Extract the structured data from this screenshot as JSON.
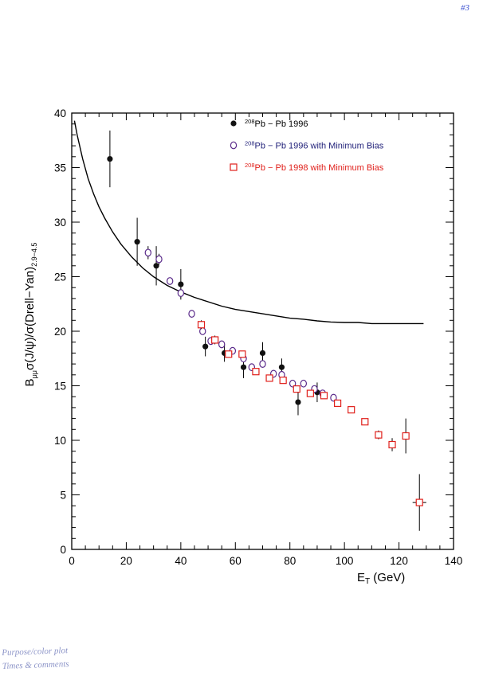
{
  "page_number": "#3",
  "handwritten_note": [
    "Purpose/color plot",
    "Times & comments"
  ],
  "chart_data": {
    "type": "scatter",
    "title": "",
    "xlabel": "E_T (GeV)",
    "ylabel": "B_{μμ}σ(J/ψ)/σ(Drell−Yan)_{2.9−4.5}",
    "xlim": [
      0,
      140
    ],
    "ylim": [
      0,
      40
    ],
    "x_ticks": [
      0,
      20,
      40,
      60,
      80,
      100,
      120,
      140
    ],
    "y_ticks": [
      0,
      5,
      10,
      15,
      20,
      25,
      30,
      35,
      40
    ],
    "grid": false,
    "legend_position": "top-center",
    "series": [
      {
        "name": "208Pb − Pb 1996",
        "marker": "filled-circle",
        "color": "#111111",
        "points": [
          {
            "x": 14,
            "y": 35.8,
            "err": 2.6
          },
          {
            "x": 24,
            "y": 28.2,
            "err": 2.2
          },
          {
            "x": 31,
            "y": 26.0,
            "err": 1.8
          },
          {
            "x": 40,
            "y": 24.3,
            "err": 1.4
          },
          {
            "x": 49,
            "y": 18.6,
            "err": 0.9
          },
          {
            "x": 56,
            "y": 18.0,
            "err": 0.8
          },
          {
            "x": 63,
            "y": 16.7,
            "err": 1.0
          },
          {
            "x": 70,
            "y": 18.0,
            "err": 1.0
          },
          {
            "x": 77,
            "y": 16.7,
            "err": 0.8
          },
          {
            "x": 83,
            "y": 13.5,
            "err": 1.2
          },
          {
            "x": 90,
            "y": 14.4,
            "err": 0.9
          }
        ]
      },
      {
        "name": "208Pb − Pb 1996 with Minimum Bias",
        "marker": "open-circle",
        "color": "#5a2a8a",
        "points": [
          {
            "x": 28,
            "y": 27.2,
            "err": 0.6
          },
          {
            "x": 32,
            "y": 26.6,
            "err": 0.5
          },
          {
            "x": 36,
            "y": 24.6,
            "err": 0.3
          },
          {
            "x": 40,
            "y": 23.5,
            "err": 0.4
          },
          {
            "x": 44,
            "y": 21.6,
            "err": 0.3
          },
          {
            "x": 48,
            "y": 20.0,
            "err": 0.3
          },
          {
            "x": 51,
            "y": 19.1,
            "err": 0.3
          },
          {
            "x": 55,
            "y": 18.8,
            "err": 0.3
          },
          {
            "x": 59,
            "y": 18.2,
            "err": 0.3
          },
          {
            "x": 63,
            "y": 17.5,
            "err": 0.3
          },
          {
            "x": 66,
            "y": 16.7,
            "err": 0.3
          },
          {
            "x": 70,
            "y": 17.0,
            "err": 0.3
          },
          {
            "x": 74,
            "y": 16.1,
            "err": 0.3
          },
          {
            "x": 77,
            "y": 16.0,
            "err": 0.3
          },
          {
            "x": 81,
            "y": 15.2,
            "err": 0.3
          },
          {
            "x": 85,
            "y": 15.2,
            "err": 0.3
          },
          {
            "x": 89,
            "y": 14.7,
            "err": 0.3
          },
          {
            "x": 92,
            "y": 14.3,
            "err": 0.3
          },
          {
            "x": 96,
            "y": 13.9,
            "err": 0.3
          }
        ]
      },
      {
        "name": "208Pb − Pb 1998 with Minimum Bias",
        "marker": "open-square",
        "color": "#e0201b",
        "points": [
          {
            "x": 47.5,
            "y": 20.6,
            "err": 0.4
          },
          {
            "x": 52.5,
            "y": 19.2,
            "err": 0.4
          },
          {
            "x": 57.5,
            "y": 17.9,
            "err": 0.3
          },
          {
            "x": 62.5,
            "y": 17.9,
            "err": 0.3
          },
          {
            "x": 67.5,
            "y": 16.3,
            "err": 0.3
          },
          {
            "x": 72.5,
            "y": 15.7,
            "err": 0.3
          },
          {
            "x": 77.5,
            "y": 15.5,
            "err": 0.3
          },
          {
            "x": 82.5,
            "y": 14.7,
            "err": 0.3
          },
          {
            "x": 87.5,
            "y": 14.3,
            "err": 0.3
          },
          {
            "x": 92.5,
            "y": 14.1,
            "err": 0.3
          },
          {
            "x": 97.5,
            "y": 13.4,
            "err": 0.3
          },
          {
            "x": 102.5,
            "y": 12.8,
            "err": 0.3
          },
          {
            "x": 107.5,
            "y": 11.7,
            "err": 0.3
          },
          {
            "x": 112.5,
            "y": 10.5,
            "err": 0.4
          },
          {
            "x": 117.5,
            "y": 9.6,
            "err": 0.6
          },
          {
            "x": 122.5,
            "y": 10.4,
            "err": 1.6
          },
          {
            "x": 127.5,
            "y": 4.3,
            "err": 2.6,
            "xerr": 2.5
          }
        ]
      }
    ],
    "curve": {
      "type": "line",
      "color": "#000000",
      "x": [
        1,
        2,
        4,
        6,
        8,
        10,
        12,
        15,
        18,
        22,
        26,
        30,
        35,
        40,
        45,
        50,
        55,
        60,
        65,
        70,
        75,
        80,
        85,
        90,
        95,
        100,
        105,
        110,
        115,
        120,
        125,
        129
      ],
      "y": [
        39.3,
        38.0,
        35.8,
        34.0,
        32.6,
        31.4,
        30.4,
        29.1,
        28.0,
        26.8,
        25.8,
        25.0,
        24.2,
        23.6,
        23.1,
        22.7,
        22.3,
        22.0,
        21.8,
        21.6,
        21.4,
        21.2,
        21.1,
        20.95,
        20.85,
        20.8,
        20.8,
        20.7,
        20.7,
        20.7,
        20.7,
        20.7
      ]
    }
  }
}
